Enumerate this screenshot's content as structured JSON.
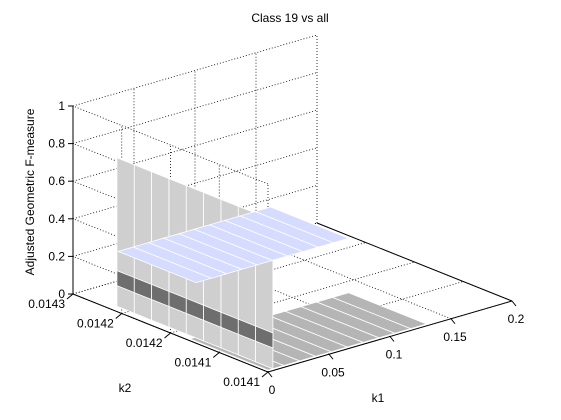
{
  "chart_data": {
    "type": "surface3d",
    "title": "Class 19 vs all",
    "xlabel": "k1",
    "ylabel": "k2",
    "zlabel": "Adjusted Geometric F-measure",
    "x_ticks": [
      "0",
      "0.05",
      "0.1",
      "0.15",
      "0.2"
    ],
    "y_ticks": [
      "0.0141",
      "0.0141",
      "0.0142",
      "0.0142",
      "0.0143"
    ],
    "z_ticks": [
      "0",
      "0.2",
      "0.4",
      "0.6",
      "0.8",
      "1"
    ],
    "xlim": [
      0,
      0.2
    ],
    "ylim": [
      0.01405,
      0.0143
    ],
    "zlim": [
      0,
      1
    ],
    "grid": true,
    "colors": {
      "plane_high": "#d6dcff",
      "plane_high_edge": "#ffffff",
      "plane_low": "#b5b5b5",
      "wall": "#cfcfcf",
      "wall_dark": "#6e6e6e",
      "grid": "#000000"
    },
    "surfaces": [
      {
        "name": "",
        "description_values": {
          "k1_range": [
            0.005,
            0.13
          ],
          "k2_range": [
            0.01415,
            0.01425
          ],
          "z": 0.3
        }
      },
      {
        "name": "",
        "description_values": {
          "k1_range": [
            0.0,
            0.13
          ],
          "k2_range": [
            0.01405,
            0.01415
          ],
          "z": 0.0
        }
      },
      {
        "name": "",
        "description_values": {
          "k1": 0.0,
          "k2_range": [
            0.01405,
            0.01425
          ],
          "z_range": [
            0.0,
            0.8
          ]
        }
      }
    ]
  }
}
